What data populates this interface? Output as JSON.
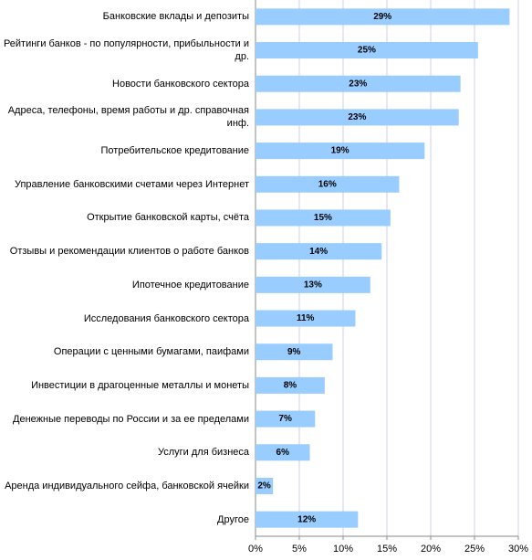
{
  "chart_data": {
    "type": "bar",
    "orientation": "horizontal",
    "categories": [
      "Банковские вклады и депозиты",
      "Рейтинги банков - по популярности, прибыльности и др.",
      "Новости банковского сектора",
      "Адреса, телефоны, время работы и др. справочная инф.",
      "Потребительское кредитование",
      "Управление банковскими счетами через Интернет",
      "Открытие банковской карты, счёта",
      "Отзывы и рекомендации клиентов о работе банков",
      "Ипотечное кредитование",
      "Исследования банковского сектора",
      "Операции с ценными бумагами, паифами",
      "Инвестиции в драгоценные металлы и монеты",
      "Денежные переводы по России и за ее пределами",
      "Услуги для бизнеса",
      "Аренда индивидуального сейфа, банковской ячейки",
      "Другое"
    ],
    "values": [
      29,
      25.4,
      23.4,
      23.2,
      19.3,
      16.4,
      15.4,
      14.4,
      13.1,
      11.4,
      8.8,
      7.9,
      6.8,
      6.2,
      2,
      11.7
    ],
    "value_labels": [
      "29%",
      "25%",
      "23%",
      "23%",
      "19%",
      "16%",
      "15%",
      "14%",
      "13%",
      "11%",
      "9%",
      "8%",
      "7%",
      "6%",
      "2%",
      "12%"
    ],
    "color": "#99ccff",
    "xlim": [
      0,
      30
    ],
    "xticks": [
      {
        "value": 0,
        "label": "0%"
      },
      {
        "value": 5,
        "label": "5%"
      },
      {
        "value": 10,
        "label": "10%"
      },
      {
        "value": 15,
        "label": "15%"
      },
      {
        "value": 20,
        "label": "20%"
      },
      {
        "value": 25,
        "label": "25%"
      },
      {
        "value": 30,
        "label": "30%"
      }
    ],
    "grid": true
  }
}
